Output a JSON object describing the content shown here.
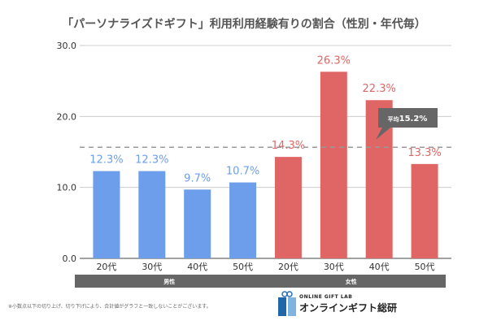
{
  "chart_data": {
    "type": "bar",
    "title": "「パーソナライズドギフト」利用利用経験有りの割合（性別・年代毎）",
    "categories": [
      "20代",
      "30代",
      "40代",
      "50代",
      "20代",
      "30代",
      "40代",
      "50代"
    ],
    "groups": [
      {
        "label": "男性",
        "color": "#6d9eeb",
        "indices": [
          0,
          1,
          2,
          3
        ]
      },
      {
        "label": "女性",
        "color": "#e06666",
        "indices": [
          4,
          5,
          6,
          7
        ]
      }
    ],
    "values": [
      12.3,
      12.3,
      9.7,
      10.7,
      14.3,
      26.3,
      22.3,
      13.3
    ],
    "data_labels": [
      "12.3%",
      "12.3%",
      "9.7%",
      "10.7%",
      "14.3%",
      "26.3%",
      "22.3%",
      "13.3%"
    ],
    "ylim": [
      0,
      30
    ],
    "yticks": [
      "0.0",
      "10.0",
      "20.0",
      "30.0"
    ],
    "grid": true,
    "average": {
      "value": 15.2,
      "label_prefix": "平均",
      "label_value": "15.2%"
    }
  },
  "footnote": "※小数点以下の切り上げ、切り下げにより、合計値がグラフと一致しないことがございます。",
  "logo": {
    "sub": "ONLINE GIFT LAB",
    "main": "オンラインギフト総研"
  },
  "colors": {
    "male": "#6d9eeb",
    "female": "#e06666",
    "group_bar": "#666666"
  }
}
